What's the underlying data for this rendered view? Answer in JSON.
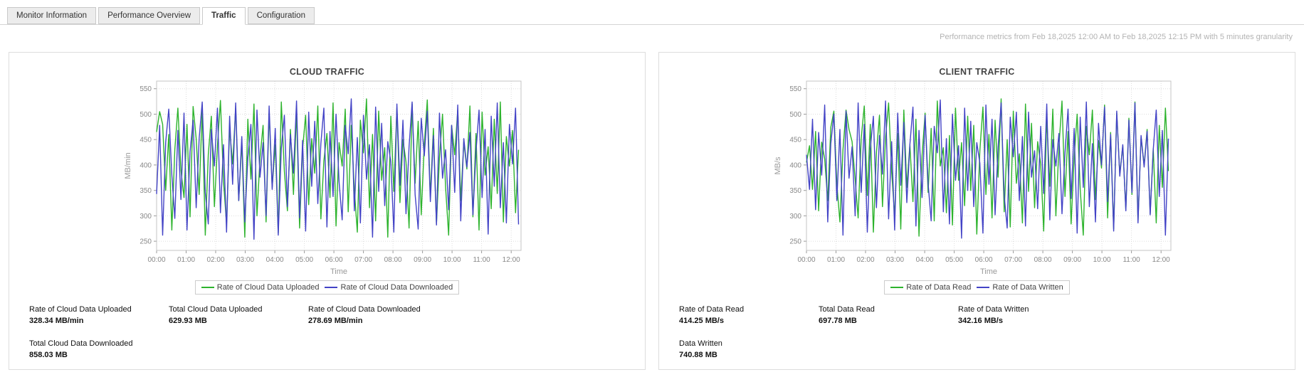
{
  "tabs": {
    "items": [
      {
        "label": "Monitor Information",
        "active": false
      },
      {
        "label": "Performance Overview",
        "active": false
      },
      {
        "label": "Traffic",
        "active": true
      },
      {
        "label": "Configuration",
        "active": false
      }
    ]
  },
  "header": {
    "note": "Performance metrics from Feb 18,2025 12:00 AM to Feb 18,2025 12:15 PM with 5 minutes granularity"
  },
  "colors": {
    "series_green": "#2db32d",
    "series_blue": "#4343c6",
    "grid": "#dddddd",
    "frame": "#c4c4c4",
    "tick_label": "#888888",
    "axis_label": "#999999",
    "panel_border": "#dddddd",
    "note_text": "#b3b3b3"
  },
  "panels": [
    {
      "title": "CLOUD TRAFFIC",
      "stats": [
        {
          "label": "Rate of Cloud Data Uploaded",
          "value": "328.34 MB/min"
        },
        {
          "label": "Total Cloud Data Uploaded",
          "value": "629.93 MB"
        },
        {
          "label": "Rate of Cloud Data Downloaded",
          "value": "278.69 MB/min"
        },
        {
          "label": "Total Cloud Data Downloaded",
          "value": "858.03 MB"
        }
      ]
    },
    {
      "title": "CLIENT TRAFFIC",
      "stats": [
        {
          "label": "Rate of Data Read",
          "value": "414.25 MB/s"
        },
        {
          "label": "Total Data Read",
          "value": "697.78 MB"
        },
        {
          "label": "Rate of Data Written",
          "value": "342.16 MB/s"
        },
        {
          "label": "Data Written",
          "value": "740.88 MB"
        }
      ]
    }
  ],
  "chart_data": [
    {
      "type": "line",
      "title": "CLOUD TRAFFIC",
      "xlabel": "Time",
      "ylabel": "MB/min",
      "ylim": [
        250,
        550
      ],
      "y_ticks": [
        250,
        300,
        350,
        400,
        450,
        500,
        550
      ],
      "x_tick_labels": [
        "00:00",
        "01:00",
        "02:00",
        "03:00",
        "04:00",
        "05:00",
        "06:00",
        "07:00",
        "08:00",
        "09:00",
        "10:00",
        "11:00",
        "12:00"
      ],
      "x_range_minutes": [
        0,
        735
      ],
      "grid": true,
      "legend_position": "bottom",
      "series": [
        {
          "name": "Rate of Cloud Data Uploaded",
          "color": "#2db32d",
          "values": [
            465,
            505,
            480,
            350,
            460,
            272,
            430,
            512,
            390,
            336,
            480,
            298,
            515,
            452,
            342,
            508,
            262,
            420,
            496,
            318,
            438,
            527,
            368,
            284,
            472,
            402,
            512,
            330,
            446,
            258,
            490,
            372,
            520,
            300,
            414,
            478,
            288,
            502,
            356,
            440,
            266,
            524,
            388,
            310,
            470,
            342,
            506,
            276,
            432,
            498,
            322,
            452,
            384,
            516,
            294,
            408,
            462,
            336,
            522,
            280,
            444,
            398,
            510,
            308,
            478,
            352,
            268,
            488,
            424,
            530,
            316,
            460,
            290,
            506,
            370,
            434,
            258,
            496,
            348,
            512,
            326,
            450,
            406,
            276,
            520,
            364,
            486,
            302,
            440,
            528,
            338,
            472,
            284,
            414,
            500,
            356,
            262,
            478,
            420,
            508,
            330,
            446,
            392,
            516,
            298,
            462,
            272,
            504,
            380,
            436,
            314,
            490,
            344,
            524,
            288,
            456,
            398,
            468,
            306,
            430
          ]
        },
        {
          "name": "Rate of Cloud Data Downloaded",
          "color": "#4343c6",
          "values": [
            343,
            478,
            262,
            445,
            510,
            380,
            295,
            468,
            332,
            502,
            272,
            426,
            488,
            316,
            452,
            524,
            346,
            284,
            470,
            398,
            512,
            306,
            440,
            268,
            496,
            362,
            522,
            330,
            456,
            288,
            414,
            480,
            254,
            508,
            376,
            444,
            300,
            516,
            352,
            472,
            262,
            432,
            498,
            318,
            460,
            384,
            526,
            296,
            448,
            270,
            504,
            358,
            486,
            324,
            442,
            512,
            278,
            466,
            338,
            500,
            366,
            292,
            478,
            422,
            530,
            310,
            454,
            286,
            498,
            372,
            440,
            258,
            514,
            348,
            482,
            320,
            446,
            406,
            268,
            520,
            360,
            488,
            304,
            436,
            524,
            342,
            274,
            492,
            418,
            506,
            328,
            458,
            282,
            502,
            374,
            430,
            312,
            478,
            346,
            518,
            290,
            452,
            396,
            464,
            302,
            426,
            508,
            336,
            470,
            264,
            496,
            358,
            522,
            316,
            444,
            286,
            480,
            402,
            512,
            283
          ]
        }
      ]
    },
    {
      "type": "line",
      "title": "CLIENT TRAFFIC",
      "xlabel": "Time",
      "ylabel": "MB/s",
      "ylim": [
        250,
        550
      ],
      "y_ticks": [
        250,
        300,
        350,
        400,
        450,
        500,
        550
      ],
      "x_tick_labels": [
        "00:00",
        "01:00",
        "02:00",
        "03:00",
        "04:00",
        "05:00",
        "06:00",
        "07:00",
        "08:00",
        "09:00",
        "10:00",
        "11:00",
        "12:00"
      ],
      "x_range_minutes": [
        0,
        735
      ],
      "grid": true,
      "legend_position": "bottom",
      "series": [
        {
          "name": "Rate of Data Read",
          "color": "#2db32d",
          "values": [
            405,
            438,
            352,
            466,
            310,
            445,
            412,
            330,
            474,
            506,
            362,
            288,
            430,
            508,
            470,
            446,
            372,
            296,
            452,
            516,
            340,
            480,
            268,
            424,
            498,
            318,
            454,
            522,
            386,
            300,
            462,
            274,
            508,
            356,
            440,
            328,
            490,
            260,
            418,
            502,
            346,
            472,
            290,
            526,
            398,
            434,
            306,
            458,
            282,
            512,
            370,
            444,
            320,
            496,
            350,
            478,
            264,
            428,
            514,
            342,
            460,
            296,
            488,
            376,
            530,
            308,
            450,
            278,
            506,
            364,
            422,
            286,
            520,
            348,
            482,
            316,
            446,
            402,
            270,
            494,
            358,
            510,
            300,
            436,
            526,
            338,
            466,
            284,
            414,
            500,
            352,
            262,
            476,
            420,
            508,
            332,
            448,
            394,
            518,
            296,
            464,
            274,
            502,
            382,
            438,
            312,
            492,
            342,
            524,
            290,
            454,
            400,
            470,
            304,
            432,
            286,
            478,
            356,
            512,
            388
          ]
        },
        {
          "name": "Rate of Data Written",
          "color": "#4343c6",
          "values": [
            420,
            352,
            490,
            312,
            464,
            380,
            518,
            288,
            442,
            500,
            330,
            470,
            262,
            506,
            374,
            436,
            300,
            522,
            346,
            480,
            268,
            432,
            496,
            316,
            458,
            382,
            526,
            294,
            446,
            272,
            502,
            360,
            484,
            326,
            440,
            514,
            280,
            468,
            336,
            498,
            364,
            290,
            476,
            424,
            528,
            308,
            452,
            284,
            500,
            370,
            438,
            256,
            512,
            350,
            486,
            318,
            444,
            404,
            266,
            518,
            362,
            490,
            302,
            434,
            522,
            340,
            276,
            494,
            416,
            504,
            330,
            456,
            280,
            504,
            376,
            428,
            314,
            476,
            344,
            520,
            292,
            450,
            398,
            462,
            304,
            424,
            510,
            334,
            472,
            266,
            494,
            356,
            524,
            318,
            442,
            288,
            482,
            400,
            514,
            328,
            460,
            270,
            506,
            378,
            440,
            310,
            488,
            346,
            522,
            286,
            458,
            396,
            466,
            302,
            430,
            508,
            338,
            468,
            262,
            452
          ]
        }
      ]
    }
  ]
}
